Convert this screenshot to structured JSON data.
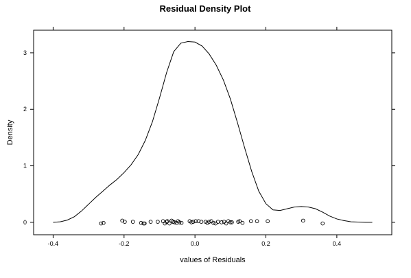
{
  "chart_data": {
    "type": "density",
    "title": "Residual Density Plot",
    "xlabel": "values of Residuals",
    "ylabel": "Density",
    "xlim": [
      -0.455,
      0.555
    ],
    "ylim": [
      -0.22,
      3.4
    ],
    "x_ticks": [
      -0.4,
      -0.2,
      0.0,
      0.2,
      0.4
    ],
    "x_tick_labels": [
      "-0.4",
      "-0.2",
      "0.0",
      "0.2",
      "0.4"
    ],
    "y_ticks": [
      0,
      1,
      2,
      3
    ],
    "y_tick_labels": [
      "0",
      "1",
      "2",
      "3"
    ],
    "grid": false,
    "density_curve": {
      "x": [
        -0.4,
        -0.38,
        -0.36,
        -0.34,
        -0.32,
        -0.3,
        -0.28,
        -0.26,
        -0.24,
        -0.22,
        -0.2,
        -0.18,
        -0.16,
        -0.14,
        -0.12,
        -0.1,
        -0.08,
        -0.06,
        -0.04,
        -0.02,
        0.0,
        0.02,
        0.04,
        0.06,
        0.08,
        0.1,
        0.12,
        0.14,
        0.16,
        0.18,
        0.2,
        0.22,
        0.24,
        0.26,
        0.28,
        0.3,
        0.32,
        0.34,
        0.36,
        0.38,
        0.4,
        0.42,
        0.44,
        0.46,
        0.48,
        0.5
      ],
      "y": [
        0.0,
        0.01,
        0.04,
        0.1,
        0.2,
        0.32,
        0.44,
        0.55,
        0.66,
        0.76,
        0.88,
        1.02,
        1.2,
        1.45,
        1.78,
        2.2,
        2.65,
        3.02,
        3.17,
        3.2,
        3.19,
        3.12,
        2.98,
        2.78,
        2.52,
        2.18,
        1.76,
        1.32,
        0.9,
        0.55,
        0.33,
        0.22,
        0.21,
        0.24,
        0.27,
        0.28,
        0.27,
        0.24,
        0.18,
        0.11,
        0.06,
        0.03,
        0.01,
        0.005,
        0.0,
        0.0
      ],
      "color": "#000000"
    },
    "rug_points": {
      "x": [
        -0.265,
        -0.258,
        -0.205,
        -0.198,
        -0.175,
        -0.152,
        -0.145,
        -0.142,
        -0.125,
        -0.105,
        -0.09,
        -0.085,
        -0.08,
        -0.078,
        -0.072,
        -0.066,
        -0.062,
        -0.058,
        -0.052,
        -0.048,
        -0.044,
        -0.038,
        -0.015,
        -0.01,
        -0.005,
        0.002,
        0.01,
        0.018,
        0.03,
        0.035,
        0.04,
        0.046,
        0.052,
        0.058,
        0.065,
        0.075,
        0.082,
        0.088,
        0.094,
        0.1,
        0.104,
        0.122,
        0.126,
        0.134,
        0.158,
        0.175,
        0.205,
        0.305,
        0.36
      ],
      "y": [
        -0.02,
        -0.01,
        0.03,
        0.01,
        0.01,
        -0.01,
        -0.02,
        -0.02,
        0.01,
        0.01,
        0.02,
        -0.02,
        0.01,
        0.02,
        -0.02,
        0.03,
        0.01,
        0.0,
        -0.01,
        0.02,
        0.0,
        -0.01,
        0.02,
        0.0,
        0.01,
        0.02,
        0.02,
        0.01,
        0.01,
        -0.01,
        0.01,
        0.02,
        -0.01,
        -0.02,
        0.01,
        0.0,
        0.01,
        -0.02,
        0.02,
        0.0,
        0.0,
        0.01,
        0.02,
        -0.01,
        0.02,
        0.02,
        0.02,
        0.03,
        -0.02
      ],
      "color": "#000000"
    }
  }
}
